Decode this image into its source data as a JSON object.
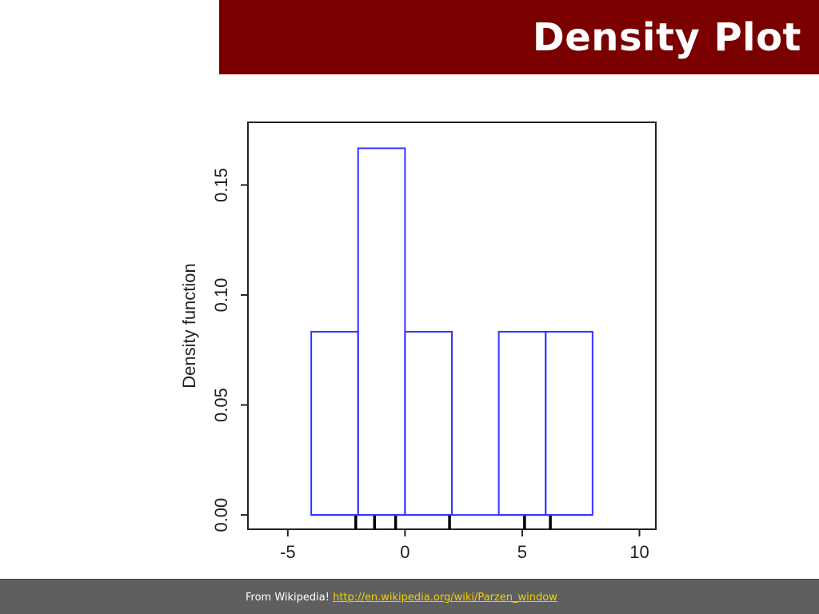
{
  "slide": {
    "title": "Density Plot",
    "colors": {
      "title_bar": "#7a0000",
      "title_text": "#ffffff",
      "footer_bg": "#5f5f5f",
      "footer_text": "#ffffff",
      "link": "#f2d000"
    }
  },
  "footer": {
    "prefix": "From Wikipedia!",
    "link_text": "http://en.wikipedia.org/wiki/Parzen_window"
  },
  "chart_data": {
    "type": "bar",
    "title": "",
    "xlabel": "",
    "ylabel": "Density function",
    "xlim": [
      -6.7,
      10.7
    ],
    "ylim": [
      -0.0065,
      0.1785
    ],
    "x_ticks": [
      -5,
      0,
      5,
      10
    ],
    "x_tick_labels": [
      "-5",
      "0",
      "5",
      "10"
    ],
    "y_ticks": [
      0.0,
      0.05,
      0.1,
      0.15
    ],
    "y_tick_labels": [
      "0.00",
      "0.05",
      "0.10",
      "0.15"
    ],
    "grid": false,
    "bar_color": "#3333ff",
    "bars": [
      {
        "x0": -4,
        "x1": -2,
        "value": 0.0833
      },
      {
        "x0": -2,
        "x1": 0,
        "value": 0.1667
      },
      {
        "x0": 0,
        "x1": 2,
        "value": 0.0833
      },
      {
        "x0": 4,
        "x1": 6,
        "value": 0.0833
      },
      {
        "x0": 6,
        "x1": 8,
        "value": 0.0833
      }
    ],
    "rug": [
      -2.1,
      -1.3,
      -0.4,
      1.9,
      5.1,
      6.2
    ]
  }
}
